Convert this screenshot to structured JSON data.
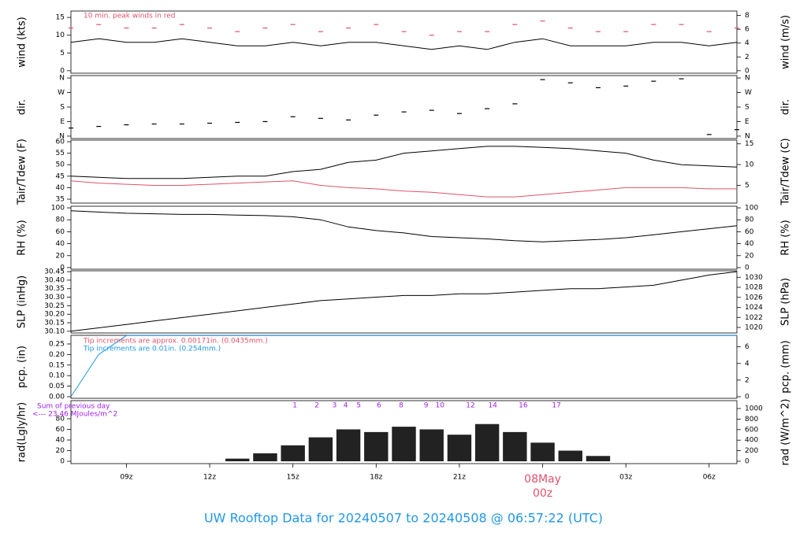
{
  "title": "UW Rooftop Data for 20240507  to  20240508 @ 06:57:22  (UTC)",
  "chart_data": [
    {
      "type": "line",
      "ylabel": "wind (kts)",
      "y2label": "wind (m/s)",
      "annotation": "10 min. peak winds in red",
      "annotation_color": "#df536b",
      "xlim": [
        7,
        31
      ],
      "ylim": [
        -0.7,
        16.8
      ],
      "yticks": [
        0,
        5,
        10,
        15
      ],
      "y2lim": [
        -0.36,
        8.64
      ],
      "y2ticks": [
        0,
        2,
        4,
        6,
        8
      ],
      "x": [
        7,
        8,
        9,
        10,
        11,
        12,
        13,
        14,
        15,
        16,
        17,
        18,
        19,
        20,
        21,
        22,
        23,
        24,
        25,
        26,
        27,
        28,
        29,
        30,
        31
      ],
      "series": [
        {
          "name": "wind",
          "color": "#000000",
          "marker": "line",
          "values": [
            8,
            9,
            8,
            8,
            9,
            8,
            7,
            7,
            8,
            7,
            8,
            8,
            7,
            6,
            7,
            6,
            8,
            9,
            7,
            7,
            7,
            8,
            8,
            7,
            8
          ]
        },
        {
          "name": "peak",
          "color": "#df536b",
          "marker": "dash",
          "values": [
            12,
            13,
            12,
            12,
            13,
            12,
            11,
            12,
            13,
            11,
            12,
            13,
            11,
            10,
            11,
            11,
            13,
            14,
            12,
            11,
            11,
            13,
            13,
            11,
            12
          ]
        }
      ]
    },
    {
      "type": "scatter",
      "ylabel": "dir.",
      "y2label": "dir.",
      "xlim": [
        7,
        31
      ],
      "ylim": [
        -15,
        375
      ],
      "yticks": [
        {
          "value": 0,
          "label": "N"
        },
        {
          "value": 90,
          "label": "E"
        },
        {
          "value": 180,
          "label": "S"
        },
        {
          "value": 270,
          "label": "W"
        },
        {
          "value": 360,
          "label": "N"
        }
      ],
      "x": [
        7,
        8,
        9,
        10,
        11,
        12,
        13,
        14,
        15,
        16,
        17,
        18,
        19,
        20,
        21,
        22,
        23,
        24,
        25,
        26,
        27,
        28,
        29,
        30,
        31
      ],
      "series": [
        {
          "name": "dir",
          "color": "#000000",
          "marker": "dash",
          "values": [
            50,
            60,
            70,
            75,
            75,
            80,
            85,
            90,
            120,
            110,
            100,
            130,
            150,
            160,
            140,
            170,
            200,
            350,
            330,
            300,
            310,
            340,
            355,
            10,
            40
          ]
        }
      ]
    },
    {
      "type": "line",
      "ylabel": "Tair/Tdew (F)",
      "y2label": "Tair/Tdew (C)",
      "xlim": [
        7,
        31
      ],
      "ylim": [
        33.3,
        60.7
      ],
      "yticks": [
        35,
        40,
        45,
        50,
        55,
        60
      ],
      "y2lim": [
        0.7,
        15.9
      ],
      "y2ticks": [
        5,
        10,
        15
      ],
      "x": [
        7,
        8,
        9,
        10,
        11,
        12,
        13,
        14,
        15,
        16,
        17,
        18,
        19,
        20,
        21,
        22,
        23,
        24,
        25,
        26,
        27,
        28,
        29,
        30,
        31
      ],
      "series": [
        {
          "name": "Tair",
          "color": "#000000",
          "marker": "line",
          "values": [
            45,
            44.5,
            44,
            44,
            44,
            44.5,
            45,
            45,
            47,
            48,
            51,
            52,
            55,
            56,
            57,
            58,
            58,
            57.5,
            57,
            56,
            55,
            52,
            50,
            49.5,
            49
          ]
        },
        {
          "name": "Tdew",
          "color": "#df536b",
          "marker": "line",
          "values": [
            43,
            42,
            41.5,
            41,
            41,
            41.5,
            42,
            42.5,
            43,
            41,
            40,
            39.5,
            38.5,
            38,
            37,
            36,
            36,
            37,
            38,
            39,
            40,
            40,
            40,
            39.5,
            39.5
          ]
        }
      ]
    },
    {
      "type": "line",
      "ylabel": "RH (%)",
      "y2label": "RH (%)",
      "xlim": [
        7,
        31
      ],
      "ylim": [
        -2.7,
        102.7
      ],
      "yticks": [
        0,
        20,
        40,
        60,
        80,
        100
      ],
      "y2lim": [
        -2.7,
        102.7
      ],
      "y2ticks": [
        0,
        20,
        40,
        60,
        80,
        100
      ],
      "x": [
        7,
        8,
        9,
        10,
        11,
        12,
        13,
        14,
        15,
        16,
        17,
        18,
        19,
        20,
        21,
        22,
        23,
        24,
        25,
        26,
        27,
        28,
        29,
        30,
        31
      ],
      "series": [
        {
          "name": "RH",
          "color": "#000000",
          "marker": "line",
          "values": [
            95,
            93,
            91,
            90,
            89,
            89,
            88,
            87,
            85,
            80,
            68,
            62,
            58,
            52,
            50,
            48,
            45,
            43,
            45,
            47,
            50,
            55,
            60,
            65,
            70
          ]
        }
      ]
    },
    {
      "type": "line",
      "ylabel": "SLP (inHg)",
      "y2label": "SLP (hPa)",
      "xlim": [
        7,
        31
      ],
      "ylim": [
        30.09,
        30.455
      ],
      "yticks": [
        {
          "value": 30.1,
          "label": "30.10"
        },
        30.15,
        {
          "value": 30.2,
          "label": "30.20"
        },
        30.25,
        {
          "value": 30.3,
          "label": "30.30"
        },
        30.35,
        {
          "value": 30.4,
          "label": "30.40"
        },
        30.45
      ],
      "y2lim": [
        1018.9,
        1031.3
      ],
      "y2ticks": [
        1020,
        1022,
        1024,
        1026,
        1028,
        1030
      ],
      "x": [
        7,
        8,
        9,
        10,
        11,
        12,
        13,
        14,
        15,
        16,
        17,
        18,
        19,
        20,
        21,
        22,
        23,
        24,
        25,
        26,
        27,
        28,
        29,
        30,
        31
      ],
      "series": [
        {
          "name": "SLP",
          "color": "#000000",
          "marker": "line",
          "values": [
            30.1,
            30.12,
            30.14,
            30.16,
            30.18,
            30.2,
            30.22,
            30.24,
            30.26,
            30.28,
            30.29,
            30.3,
            30.31,
            30.31,
            30.32,
            30.32,
            30.33,
            30.34,
            30.35,
            30.35,
            30.36,
            30.37,
            30.4,
            30.43,
            30.45
          ]
        }
      ]
    },
    {
      "type": "line",
      "ylabel": "pcp. (in)",
      "y2label": "pcp. (mm)",
      "notes": [
        {
          "text": "Tip increments are approx. 0.00171in. (0.0435mm.)",
          "color": "#df536b"
        },
        {
          "text": "Tip increments are 0.01in. (0.254mm.)",
          "color": "#2297e6"
        }
      ],
      "xlim": [
        7,
        31
      ],
      "ylim": [
        -0.0075,
        0.291
      ],
      "yticks": [
        {
          "value": 0,
          "label": "0.00"
        },
        0.05,
        {
          "value": 0.1,
          "label": "0.10"
        },
        0.15,
        {
          "value": 0.2,
          "label": "0.20"
        },
        0.25
      ],
      "y2lim": [
        -0.19,
        7.39
      ],
      "y2ticks": [
        0,
        2,
        4,
        6
      ],
      "x": [
        7,
        8,
        9,
        10,
        11,
        12,
        13,
        14,
        15,
        16,
        17,
        18,
        19,
        20,
        21,
        22,
        23,
        24,
        25,
        26,
        27,
        28,
        29,
        30,
        31
      ],
      "series": [
        {
          "name": "pcp",
          "color": "#2297e6",
          "marker": "line",
          "values": [
            0,
            0.2,
            0.29,
            0.29,
            0.29,
            0.29,
            0.29,
            0.29,
            0.29,
            0.29,
            0.29,
            0.29,
            0.29,
            0.29,
            0.29,
            0.29,
            0.29,
            0.29,
            0.29,
            0.29,
            0.29,
            0.29,
            0.29,
            0.29,
            0.29
          ]
        }
      ]
    },
    {
      "type": "bar",
      "ylabel": "rad(Lgly/hr)",
      "y2label": "rad (W/m^2)",
      "notes": [
        {
          "text": "Sum of previous day",
          "color": "#a020f0"
        },
        {
          "text": "<--- 23.46 MJoules/m^2",
          "color": "#a020f0"
        }
      ],
      "hour_marks": [
        {
          "x": 15.07,
          "label": "1"
        },
        {
          "x": 15.86,
          "label": "2"
        },
        {
          "x": 16.5,
          "label": "3"
        },
        {
          "x": 16.9,
          "label": "4"
        },
        {
          "x": 17.37,
          "label": "5"
        },
        {
          "x": 18.1,
          "label": "6"
        },
        {
          "x": 18.9,
          "label": "8"
        },
        {
          "x": 19.8,
          "label": "9"
        },
        {
          "x": 20.3,
          "label": "10"
        },
        {
          "x": 21.4,
          "label": "12"
        },
        {
          "x": 22.2,
          "label": "14"
        },
        {
          "x": 23.3,
          "label": "16"
        },
        {
          "x": 24.5,
          "label": "17"
        }
      ],
      "hour_mark_color": "#a020f0",
      "xlim": [
        7,
        31
      ],
      "ylim": [
        -4.4,
        114
      ],
      "yticks": [
        0,
        20,
        40,
        60,
        80
      ],
      "y2lim": [
        -45,
        1149
      ],
      "y2ticks": [
        0,
        200,
        400,
        600,
        800,
        1000
      ],
      "xticks": [
        {
          "value": 9,
          "label": "09z"
        },
        {
          "value": 12,
          "label": "12z"
        },
        {
          "value": 15,
          "label": "15z"
        },
        {
          "value": 18,
          "label": "18z"
        },
        {
          "value": 21,
          "label": "21z"
        },
        {
          "value": 24,
          "label": "00z",
          "date": "08May"
        },
        {
          "value": 27,
          "label": "03z"
        },
        {
          "value": 30,
          "label": "06z"
        }
      ],
      "x": [
        7,
        8,
        9,
        10,
        11,
        12,
        13,
        14,
        15,
        16,
        17,
        18,
        19,
        20,
        21,
        22,
        23,
        24,
        25,
        26,
        27,
        28,
        29,
        30,
        31
      ],
      "series": [
        {
          "name": "rad",
          "color": "#222222",
          "values": [
            0,
            0,
            0,
            0,
            0,
            0,
            5,
            15,
            30,
            45,
            60,
            55,
            65,
            60,
            50,
            70,
            55,
            35,
            20,
            10,
            0,
            0,
            0,
            0,
            0
          ]
        }
      ]
    }
  ]
}
